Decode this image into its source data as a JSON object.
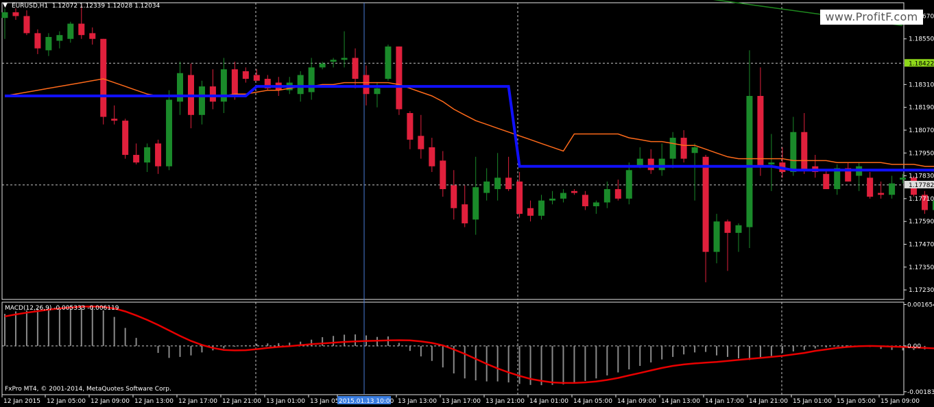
{
  "header": {
    "symbol_info": "EURUSD,H1  1.12072 1.12339 1.12028 1.12034",
    "indicator_label": "MACD(12,26,9) -0.005333 -0.006119",
    "copyright": "FxPro MT4, © 2001-2014, MetaQuotes Software Corp."
  },
  "watermark": "www.ProfitF.com",
  "colors": {
    "background": "#000000",
    "bull": "#1a8a2a",
    "bear": "#e0203c",
    "ma_fast": "#ff6a1a",
    "blue_line": "#1010ff",
    "macd_signal": "#e80000",
    "macd_hist": "#8a8a8a",
    "grid": "#c8c8c8",
    "green_line": "#1f8a1f",
    "current_price_tag": "#8fd81a",
    "cursor_time_tag": "#3a7de0"
  },
  "chart_data": [
    {
      "type": "candlestick",
      "title": "EURUSD,H1",
      "y_ticks": [
        "1.18670",
        "1.18550",
        "1.18310",
        "1.18190",
        "1.18070",
        "1.17950",
        "1.17830",
        "1.17710",
        "1.17590",
        "1.17470",
        "1.17350",
        "1.17230"
      ],
      "price_tags": [
        "1.18422",
        "1.17782"
      ],
      "x_ticks": [
        "12 Jan 2015",
        "12 Jan 05:00",
        "12 Jan 09:00",
        "12 Jan 13:00",
        "12 Jan 17:00",
        "12 Jan 21:00",
        "13 Jan 01:00",
        "13 Jan 05",
        "2015.01.13 10:00",
        "13 Jan 13:00",
        "13 Jan 17:00",
        "13 Jan 21:00",
        "14 Jan 01:00",
        "14 Jan 05:00",
        "14 Jan 09:00",
        "14 Jan 13:00",
        "14 Jan 17:00",
        "14 Jan 21:00",
        "15 Jan 01:00",
        "15 Jan 05:00",
        "15 Jan 09:00"
      ],
      "ylim": [
        1.1718,
        1.1874
      ],
      "candles": [
        {
          "o": 1.1866,
          "h": 1.1871,
          "l": 1.1855,
          "c": 1.1869
        },
        {
          "o": 1.1869,
          "h": 1.1871,
          "l": 1.1865,
          "c": 1.1867
        },
        {
          "o": 1.1867,
          "h": 1.187,
          "l": 1.1857,
          "c": 1.1858
        },
        {
          "o": 1.1858,
          "h": 1.186,
          "l": 1.1847,
          "c": 1.185
        },
        {
          "o": 1.1849,
          "h": 1.1858,
          "l": 1.1846,
          "c": 1.1856
        },
        {
          "o": 1.1854,
          "h": 1.1859,
          "l": 1.185,
          "c": 1.1857
        },
        {
          "o": 1.1855,
          "h": 1.1864,
          "l": 1.1853,
          "c": 1.1863
        },
        {
          "o": 1.1863,
          "h": 1.1873,
          "l": 1.1855,
          "c": 1.1857
        },
        {
          "o": 1.1858,
          "h": 1.1861,
          "l": 1.1852,
          "c": 1.1855
        },
        {
          "o": 1.1855,
          "h": 1.1855,
          "l": 1.181,
          "c": 1.1814
        },
        {
          "o": 1.1813,
          "h": 1.182,
          "l": 1.181,
          "c": 1.1812
        },
        {
          "o": 1.1812,
          "h": 1.1813,
          "l": 1.1792,
          "c": 1.1794
        },
        {
          "o": 1.1794,
          "h": 1.18,
          "l": 1.1789,
          "c": 1.179
        },
        {
          "o": 1.179,
          "h": 1.18,
          "l": 1.1785,
          "c": 1.1798
        },
        {
          "o": 1.18,
          "h": 1.1802,
          "l": 1.1784,
          "c": 1.1788
        },
        {
          "o": 1.1788,
          "h": 1.1828,
          "l": 1.1786,
          "c": 1.1823
        },
        {
          "o": 1.1822,
          "h": 1.1843,
          "l": 1.1815,
          "c": 1.1837
        },
        {
          "o": 1.1836,
          "h": 1.1842,
          "l": 1.1808,
          "c": 1.1815
        },
        {
          "o": 1.1815,
          "h": 1.1833,
          "l": 1.181,
          "c": 1.183
        },
        {
          "o": 1.183,
          "h": 1.1839,
          "l": 1.1818,
          "c": 1.1822
        },
        {
          "o": 1.1822,
          "h": 1.1845,
          "l": 1.1816,
          "c": 1.1839
        },
        {
          "o": 1.1839,
          "h": 1.1843,
          "l": 1.1823,
          "c": 1.1825
        },
        {
          "o": 1.1838,
          "h": 1.184,
          "l": 1.1832,
          "c": 1.1834
        },
        {
          "o": 1.1836,
          "h": 1.1839,
          "l": 1.1834,
          "c": 1.1833
        },
        {
          "o": 1.1834,
          "h": 1.1836,
          "l": 1.1828,
          "c": 1.1829
        },
        {
          "o": 1.1832,
          "h": 1.1835,
          "l": 1.1825,
          "c": 1.1828
        },
        {
          "o": 1.1828,
          "h": 1.1835,
          "l": 1.1826,
          "c": 1.1832
        },
        {
          "o": 1.1826,
          "h": 1.1838,
          "l": 1.1822,
          "c": 1.1836
        },
        {
          "o": 1.1827,
          "h": 1.1845,
          "l": 1.1823,
          "c": 1.184
        },
        {
          "o": 1.184,
          "h": 1.1843,
          "l": 1.1839,
          "c": 1.1842
        },
        {
          "o": 1.1843,
          "h": 1.1845,
          "l": 1.184,
          "c": 1.1844
        },
        {
          "o": 1.1844,
          "h": 1.1859,
          "l": 1.184,
          "c": 1.1845
        },
        {
          "o": 1.1845,
          "h": 1.185,
          "l": 1.1829,
          "c": 1.1834
        },
        {
          "o": 1.1836,
          "h": 1.1841,
          "l": 1.182,
          "c": 1.1826
        },
        {
          "o": 1.1826,
          "h": 1.1832,
          "l": 1.1819,
          "c": 1.1829
        },
        {
          "o": 1.1834,
          "h": 1.1852,
          "l": 1.1833,
          "c": 1.1851
        },
        {
          "o": 1.1851,
          "h": 1.1851,
          "l": 1.1815,
          "c": 1.1818
        },
        {
          "o": 1.1816,
          "h": 1.1817,
          "l": 1.1797,
          "c": 1.1802
        },
        {
          "o": 1.1804,
          "h": 1.1815,
          "l": 1.1792,
          "c": 1.1797
        },
        {
          "o": 1.1798,
          "h": 1.1803,
          "l": 1.1785,
          "c": 1.1788
        },
        {
          "o": 1.1791,
          "h": 1.1796,
          "l": 1.1772,
          "c": 1.1776
        },
        {
          "o": 1.1778,
          "h": 1.1786,
          "l": 1.176,
          "c": 1.1766
        },
        {
          "o": 1.1768,
          "h": 1.1778,
          "l": 1.1756,
          "c": 1.1758
        },
        {
          "o": 1.176,
          "h": 1.1793,
          "l": 1.1752,
          "c": 1.1777
        },
        {
          "o": 1.1774,
          "h": 1.1787,
          "l": 1.177,
          "c": 1.178
        },
        {
          "o": 1.1776,
          "h": 1.1795,
          "l": 1.177,
          "c": 1.1782
        },
        {
          "o": 1.1782,
          "h": 1.1793,
          "l": 1.1775,
          "c": 1.1776
        },
        {
          "o": 1.178,
          "h": 1.1785,
          "l": 1.1761,
          "c": 1.1763
        },
        {
          "o": 1.1766,
          "h": 1.177,
          "l": 1.1759,
          "c": 1.1762
        },
        {
          "o": 1.1762,
          "h": 1.1773,
          "l": 1.176,
          "c": 1.177
        },
        {
          "o": 1.177,
          "h": 1.1775,
          "l": 1.1768,
          "c": 1.1771
        },
        {
          "o": 1.1771,
          "h": 1.1776,
          "l": 1.1769,
          "c": 1.1774
        },
        {
          "o": 1.1775,
          "h": 1.1776,
          "l": 1.1773,
          "c": 1.1774
        },
        {
          "o": 1.1773,
          "h": 1.1775,
          "l": 1.1765,
          "c": 1.1767
        },
        {
          "o": 1.1767,
          "h": 1.177,
          "l": 1.1763,
          "c": 1.1769
        },
        {
          "o": 1.1769,
          "h": 1.178,
          "l": 1.1766,
          "c": 1.1776
        },
        {
          "o": 1.1776,
          "h": 1.1781,
          "l": 1.177,
          "c": 1.1771
        },
        {
          "o": 1.1771,
          "h": 1.179,
          "l": 1.1768,
          "c": 1.1786
        },
        {
          "o": 1.1788,
          "h": 1.1798,
          "l": 1.1787,
          "c": 1.1792
        },
        {
          "o": 1.1792,
          "h": 1.1797,
          "l": 1.1784,
          "c": 1.1786
        },
        {
          "o": 1.1786,
          "h": 1.18,
          "l": 1.1783,
          "c": 1.1792
        },
        {
          "o": 1.1792,
          "h": 1.1806,
          "l": 1.1787,
          "c": 1.1803
        },
        {
          "o": 1.1803,
          "h": 1.1807,
          "l": 1.179,
          "c": 1.1792
        },
        {
          "o": 1.1795,
          "h": 1.18,
          "l": 1.177,
          "c": 1.1798
        },
        {
          "o": 1.1793,
          "h": 1.1794,
          "l": 1.1727,
          "c": 1.1743
        },
        {
          "o": 1.1743,
          "h": 1.1763,
          "l": 1.1737,
          "c": 1.1759
        },
        {
          "o": 1.1759,
          "h": 1.176,
          "l": 1.1733,
          "c": 1.1753
        },
        {
          "o": 1.1753,
          "h": 1.1758,
          "l": 1.1743,
          "c": 1.1757
        },
        {
          "o": 1.1756,
          "h": 1.1849,
          "l": 1.1745,
          "c": 1.1825
        },
        {
          "o": 1.1825,
          "h": 1.184,
          "l": 1.1783,
          "c": 1.1788
        },
        {
          "o": 1.1789,
          "h": 1.1805,
          "l": 1.1775,
          "c": 1.179
        },
        {
          "o": 1.179,
          "h": 1.1798,
          "l": 1.1782,
          "c": 1.1785
        },
        {
          "o": 1.1785,
          "h": 1.1814,
          "l": 1.1783,
          "c": 1.1806
        },
        {
          "o": 1.1806,
          "h": 1.1816,
          "l": 1.1784,
          "c": 1.1786
        },
        {
          "o": 1.1788,
          "h": 1.1794,
          "l": 1.1782,
          "c": 1.1785
        },
        {
          "o": 1.1784,
          "h": 1.1786,
          "l": 1.1776,
          "c": 1.1776
        },
        {
          "o": 1.1776,
          "h": 1.1789,
          "l": 1.1773,
          "c": 1.1787
        },
        {
          "o": 1.1787,
          "h": 1.179,
          "l": 1.178,
          "c": 1.178
        },
        {
          "o": 1.1783,
          "h": 1.179,
          "l": 1.1775,
          "c": 1.1788
        },
        {
          "o": 1.1782,
          "h": 1.1785,
          "l": 1.1771,
          "c": 1.1772
        },
        {
          "o": 1.1774,
          "h": 1.178,
          "l": 1.1771,
          "c": 1.1773
        },
        {
          "o": 1.1773,
          "h": 1.1783,
          "l": 1.1771,
          "c": 1.1779
        },
        {
          "o": 1.1781,
          "h": 1.1784,
          "l": 1.1779,
          "c": 1.1782
        },
        {
          "o": 1.1782,
          "h": 1.1783,
          "l": 1.1772,
          "c": 1.1773
        },
        {
          "o": 1.1773,
          "h": 1.1775,
          "l": 1.1763,
          "c": 1.1765
        },
        {
          "o": 1.1765,
          "h": 1.1774,
          "l": 1.1759,
          "c": 1.177
        },
        {
          "o": 1.177,
          "h": 1.1785,
          "l": 1.1766,
          "c": 1.1777
        },
        {
          "o": 1.1777,
          "h": 1.1777,
          "l": 1.1748,
          "c": 1.1757
        },
        {
          "o": 1.1757,
          "h": 1.1761,
          "l": 1.1722,
          "c": 1.1723
        }
      ],
      "moving_average": [
        1.1825,
        1.1826,
        1.1827,
        1.1828,
        1.1829,
        1.183,
        1.1831,
        1.1832,
        1.1833,
        1.1834,
        1.1832,
        1.183,
        1.1828,
        1.1826,
        1.1825,
        1.1825,
        1.1825,
        1.1825,
        1.1825,
        1.1825,
        1.1825,
        1.1826,
        1.1826,
        1.1827,
        1.1828,
        1.1828,
        1.1829,
        1.183,
        1.183,
        1.1831,
        1.1831,
        1.1832,
        1.1832,
        1.1832,
        1.1832,
        1.1832,
        1.1831,
        1.1829,
        1.1827,
        1.1825,
        1.1822,
        1.1818,
        1.1815,
        1.1812,
        1.181,
        1.1808,
        1.1806,
        1.1804,
        1.1802,
        1.18,
        1.1798,
        1.1796,
        1.1805,
        1.1805,
        1.1805,
        1.1805,
        1.1805,
        1.1803,
        1.1802,
        1.1801,
        1.1801,
        1.18,
        1.1799,
        1.1799,
        1.1797,
        1.1795,
        1.1793,
        1.1792,
        1.1792,
        1.1792,
        1.1792,
        1.1792,
        1.1791,
        1.1791,
        1.1791,
        1.1791,
        1.179,
        1.179,
        1.179,
        1.179,
        1.179,
        1.1789,
        1.1789,
        1.1789,
        1.1788,
        1.1788,
        1.1787,
        1.1786,
        1.1784
      ],
      "support_resistance_line": [
        {
          "bar": 0,
          "price": 1.1825
        },
        {
          "bar": 22,
          "price": 1.1825
        },
        {
          "bar": 23,
          "price": 1.183
        },
        {
          "bar": 46,
          "price": 1.183
        },
        {
          "bar": 47,
          "price": 1.1788
        },
        {
          "bar": 70,
          "price": 1.1788
        },
        {
          "bar": 72,
          "price": 1.1786
        },
        {
          "bar": 88,
          "price": 1.1786
        }
      ],
      "trend_line": [
        {
          "x": 1014,
          "price": 1.1877
        },
        {
          "x": 1316,
          "price": 1.1862
        }
      ]
    },
    {
      "type": "bar",
      "title": "MACD(12,26,9)",
      "y_ticks": [
        "0.001654",
        "0.00",
        "-0.001834"
      ],
      "ylim": [
        -0.00195,
        0.00175
      ],
      "histogram": [
        0.00128,
        0.00138,
        0.00142,
        0.00148,
        0.00152,
        0.00155,
        0.0016,
        0.00162,
        0.00162,
        0.00142,
        0.00116,
        0.00072,
        0.00032,
        2e-05,
        -0.00028,
        -0.00048,
        -0.00044,
        -0.00038,
        -0.00026,
        -0.00018,
        -0.0001,
        -3e-05,
        3e-05,
        8e-05,
        0.0001,
        0.00011,
        0.00013,
        0.00017,
        0.00025,
        0.00035,
        0.0004,
        0.00045,
        0.00046,
        0.00042,
        0.00036,
        0.00038,
        0.00012,
        -0.0002,
        -0.00042,
        -0.0006,
        -0.00086,
        -0.0011,
        -0.0013,
        -0.00138,
        -0.00142,
        -0.00142,
        -0.00146,
        -0.00152,
        -0.00156,
        -0.00157,
        -0.00156,
        -0.00154,
        -0.00147,
        -0.0014,
        -0.0013,
        -0.00118,
        -0.00106,
        -0.00094,
        -0.0008,
        -0.00066,
        -0.00054,
        -0.00044,
        -0.00034,
        -0.00026,
        -0.00024,
        -0.00038,
        -0.00044,
        -0.0005,
        -0.00056,
        -0.0005,
        -0.0004,
        -0.00028,
        -0.00022,
        -0.00016,
        -0.0001,
        -6e-05,
        -2e-05,
        2e-05,
        -2e-05,
        -4e-05,
        -0.00012,
        -0.00016,
        -0.00018,
        -0.00016,
        -0.00014,
        -0.00018,
        -0.00025,
        -0.00024,
        -0.00022,
        -0.0004
      ],
      "signal": [
        0.00118,
        0.00126,
        0.00133,
        0.00139,
        0.00145,
        0.0015,
        0.00154,
        0.00157,
        0.00158,
        0.00156,
        0.0015,
        0.00138,
        0.00122,
        0.00104,
        0.00084,
        0.00062,
        0.0004,
        0.0002,
        4e-05,
        -8e-05,
        -0.00016,
        -0.00018,
        -0.00017,
        -0.00013,
        -8e-05,
        -4e-05,
        -1e-05,
        3e-05,
        7e-05,
        0.0001,
        0.00013,
        0.00016,
        0.00018,
        0.0002,
        0.00021,
        0.00022,
        0.00023,
        0.00022,
        0.00018,
        0.00012,
        2e-05,
        -0.00014,
        -0.00032,
        -0.00052,
        -0.00072,
        -0.0009,
        -0.00106,
        -0.0012,
        -0.00132,
        -0.0014,
        -0.00146,
        -0.00148,
        -0.00148,
        -0.00146,
        -0.00142,
        -0.00136,
        -0.00128,
        -0.00118,
        -0.00108,
        -0.00098,
        -0.00088,
        -0.0008,
        -0.00074,
        -0.0007,
        -0.00067,
        -0.00064,
        -0.0006,
        -0.00056,
        -0.00052,
        -0.00048,
        -0.00044,
        -0.0004,
        -0.00034,
        -0.00028,
        -0.0002,
        -0.00014,
        -8e-05,
        -4e-05,
        -1e-05,
        0.0,
        -1e-05,
        -3e-05,
        -4e-05,
        -6e-05,
        -8e-05,
        -0.0001,
        -0.00012,
        -0.00016,
        -0.00024,
        -0.0003
      ]
    }
  ]
}
